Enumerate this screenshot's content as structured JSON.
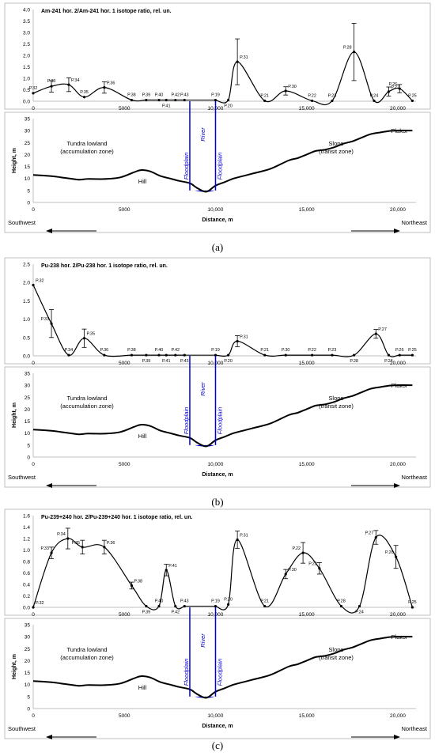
{
  "chart_data": [
    {
      "type": "line",
      "title": "Am-241 hor. 2/Am-241 hor. 1 isotope ratio, rel. un.",
      "ylim": [
        0,
        4
      ],
      "yticks": [
        "0.0",
        "0.5",
        "1.0",
        "1.5",
        "2.0",
        "2.5",
        "3.0",
        "3.5",
        "4.0"
      ],
      "xlim": [
        0,
        21000
      ],
      "xticks": [
        {
          "v": 0,
          "t": "0"
        },
        {
          "v": 5000,
          "t": "5000"
        },
        {
          "v": 10000,
          "t": "10,000"
        },
        {
          "v": 15000,
          "t": "15,000"
        },
        {
          "v": 20000,
          "t": "20,000"
        }
      ],
      "gap": [
        8590,
        10000
      ],
      "series": [
        {
          "values": [
            {
              "x": 0,
              "y": 0.35
            },
            {
              "x": 1000,
              "y": 0.65
            },
            {
              "x": 1950,
              "y": 0.72
            },
            {
              "x": 2800,
              "y": 0.18
            },
            {
              "x": 3900,
              "y": 0.6
            },
            {
              "x": 5400,
              "y": 0.05
            },
            {
              "x": 6200,
              "y": 0.05
            },
            {
              "x": 6900,
              "y": 0.05
            },
            {
              "x": 7300,
              "y": 0.05
            },
            {
              "x": 7800,
              "y": 0.05
            },
            {
              "x": 8300,
              "y": 0.05
            },
            {
              "x": 10000,
              "y": 0.05
            },
            {
              "x": 10700,
              "y": 0.05
            },
            {
              "x": 11200,
              "y": 1.72
            },
            {
              "x": 12700,
              "y": 0.02
            },
            {
              "x": 13850,
              "y": 0.45
            },
            {
              "x": 15300,
              "y": 0.02
            },
            {
              "x": 16400,
              "y": 0.02
            },
            {
              "x": 17600,
              "y": 2.15
            },
            {
              "x": 18700,
              "y": 0.02
            },
            {
              "x": 19500,
              "y": 0.42
            },
            {
              "x": 20100,
              "y": 0.55
            },
            {
              "x": 20800,
              "y": 0.02
            }
          ],
          "errors": [
            0,
            0.25,
            0.3,
            0,
            0.25,
            0,
            0,
            0,
            0,
            0,
            0,
            0,
            0,
            1.0,
            0,
            0.18,
            0,
            0,
            1.25,
            0,
            0.2,
            0.18,
            0
          ]
        }
      ],
      "labels": [
        {
          "x": 0,
          "t": "P.32",
          "pos": "above"
        },
        {
          "x": 1000,
          "t": "P.33",
          "pos": "above"
        },
        {
          "x": 1950,
          "t": "P.34",
          "pos": "right"
        },
        {
          "x": 2800,
          "t": "P.35",
          "pos": "above"
        },
        {
          "x": 3900,
          "t": "P.36",
          "pos": "right"
        },
        {
          "x": 5400,
          "t": "P.38",
          "pos": "above"
        },
        {
          "x": 6200,
          "t": "P.39",
          "pos": "above"
        },
        {
          "x": 6900,
          "t": "P.40",
          "pos": "above"
        },
        {
          "x": 7300,
          "t": "P.41",
          "pos": "below"
        },
        {
          "x": 7800,
          "t": "P.42",
          "pos": "above"
        },
        {
          "x": 8300,
          "t": "P.43",
          "pos": "above"
        },
        {
          "x": 10000,
          "t": "P.19",
          "pos": "above"
        },
        {
          "x": 10700,
          "t": "P.20",
          "pos": "below"
        },
        {
          "x": 11200,
          "t": "P.31",
          "pos": "right"
        },
        {
          "x": 12700,
          "t": "P.21",
          "pos": "above"
        },
        {
          "x": 13850,
          "t": "P.30",
          "pos": "right"
        },
        {
          "x": 15300,
          "t": "P.22",
          "pos": "above"
        },
        {
          "x": 16400,
          "t": "P.23",
          "pos": "above"
        },
        {
          "x": 17600,
          "t": "P.28",
          "pos": "left"
        },
        {
          "x": 18700,
          "t": "P.24",
          "pos": "above"
        },
        {
          "x": 19500,
          "t": "P.27",
          "pos": "right"
        },
        {
          "x": 20100,
          "t": "P.26",
          "pos": "left"
        },
        {
          "x": 20800,
          "t": "P.25",
          "pos": "above"
        }
      ]
    },
    {
      "type": "line",
      "title": "Pu-238 hor. 2/Pu-238 hor. 1 isotope ratio, rel. un.",
      "ylim": [
        0,
        2.5
      ],
      "yticks": [
        "0.0",
        "0.5",
        "1.0",
        "1.5",
        "2.0",
        "2.5"
      ],
      "xlim": [
        0,
        21000
      ],
      "xticks": [
        {
          "v": 0,
          "t": "0"
        },
        {
          "v": 5000,
          "t": "5000"
        },
        {
          "v": 10000,
          "t": "10,000"
        },
        {
          "v": 15000,
          "t": "15,000"
        },
        {
          "v": 20000,
          "t": "20,000"
        }
      ],
      "gap": [
        8590,
        10000
      ],
      "series": [
        {
          "values": [
            {
              "x": 0,
              "y": 1.93
            },
            {
              "x": 1000,
              "y": 0.88
            },
            {
              "x": 1950,
              "y": 0.02
            },
            {
              "x": 2800,
              "y": 0.48
            },
            {
              "x": 3900,
              "y": 0.02
            },
            {
              "x": 5400,
              "y": 0.02
            },
            {
              "x": 6200,
              "y": 0.02
            },
            {
              "x": 6900,
              "y": 0.02
            },
            {
              "x": 7300,
              "y": 0.02
            },
            {
              "x": 7800,
              "y": 0.02
            },
            {
              "x": 8300,
              "y": 0.02
            },
            {
              "x": 10000,
              "y": 0.02
            },
            {
              "x": 10700,
              "y": 0.02
            },
            {
              "x": 11200,
              "y": 0.4
            },
            {
              "x": 12700,
              "y": 0.02
            },
            {
              "x": 13850,
              "y": 0.02
            },
            {
              "x": 15300,
              "y": 0.02
            },
            {
              "x": 16400,
              "y": 0.02
            },
            {
              "x": 17600,
              "y": 0.02
            },
            {
              "x": 18800,
              "y": 0.6
            },
            {
              "x": 19500,
              "y": 0.02
            },
            {
              "x": 20100,
              "y": 0.02
            },
            {
              "x": 20800,
              "y": 0.02
            }
          ],
          "errors": [
            0,
            0.38,
            0,
            0.25,
            0,
            0,
            0,
            0,
            0,
            0,
            0,
            0,
            0,
            0.15,
            0,
            0,
            0,
            0,
            0,
            0.12,
            0,
            0,
            0
          ]
        }
      ],
      "labels": [
        {
          "x": 0,
          "t": "P.32",
          "pos": "right"
        },
        {
          "x": 1000,
          "t": "P.33",
          "pos": "left"
        },
        {
          "x": 1950,
          "t": "P.34",
          "pos": "above"
        },
        {
          "x": 2800,
          "t": "P.35",
          "pos": "right"
        },
        {
          "x": 3900,
          "t": "P.36",
          "pos": "above"
        },
        {
          "x": 5400,
          "t": "P.38",
          "pos": "above"
        },
        {
          "x": 6200,
          "t": "P.39",
          "pos": "below"
        },
        {
          "x": 6900,
          "t": "P.40",
          "pos": "above"
        },
        {
          "x": 7300,
          "t": "P.41",
          "pos": "below"
        },
        {
          "x": 7800,
          "t": "P.42",
          "pos": "above"
        },
        {
          "x": 8300,
          "t": "P.43",
          "pos": "below"
        },
        {
          "x": 10000,
          "t": "P.19",
          "pos": "above"
        },
        {
          "x": 10700,
          "t": "P.20",
          "pos": "below"
        },
        {
          "x": 11200,
          "t": "P.31",
          "pos": "right"
        },
        {
          "x": 12700,
          "t": "P.21",
          "pos": "above"
        },
        {
          "x": 13850,
          "t": "P.30",
          "pos": "above"
        },
        {
          "x": 15300,
          "t": "P.22",
          "pos": "above"
        },
        {
          "x": 16400,
          "t": "P.23",
          "pos": "above"
        },
        {
          "x": 17600,
          "t": "P.28",
          "pos": "below"
        },
        {
          "x": 18800,
          "t": "P.27",
          "pos": "right"
        },
        {
          "x": 19500,
          "t": "P.24",
          "pos": "below"
        },
        {
          "x": 20100,
          "t": "P.26",
          "pos": "above"
        },
        {
          "x": 20800,
          "t": "P.25",
          "pos": "above"
        }
      ]
    },
    {
      "type": "line",
      "title": "Pu-239+240 hor. 2/Pu-239+240 hor. 1 isotope ratio, rel. un.",
      "ylim": [
        0,
        1.6
      ],
      "yticks": [
        "0.0",
        "0.2",
        "0.4",
        "0.6",
        "0.8",
        "1.0",
        "1.2",
        "1.4",
        "1.6"
      ],
      "xlim": [
        0,
        21000
      ],
      "xticks": [
        {
          "v": 0,
          "t": "0"
        },
        {
          "v": 5000,
          "t": "5000"
        },
        {
          "v": 10000,
          "t": "10,000"
        },
        {
          "v": 15000,
          "t": "15,000"
        },
        {
          "v": 20000,
          "t": "20,000"
        }
      ],
      "gap": [
        8590,
        10000
      ],
      "series": [
        {
          "values": [
            {
              "x": 0,
              "y": 0.0
            },
            {
              "x": 1000,
              "y": 0.95
            },
            {
              "x": 1900,
              "y": 1.2
            },
            {
              "x": 2700,
              "y": 1.05
            },
            {
              "x": 3900,
              "y": 1.05
            },
            {
              "x": 5400,
              "y": 0.38
            },
            {
              "x": 6200,
              "y": 0.02
            },
            {
              "x": 6900,
              "y": 0.02
            },
            {
              "x": 7300,
              "y": 0.65
            },
            {
              "x": 7800,
              "y": 0.02
            },
            {
              "x": 8300,
              "y": 0.02
            },
            {
              "x": 10000,
              "y": 0.02
            },
            {
              "x": 10700,
              "y": 0.05
            },
            {
              "x": 11200,
              "y": 1.18
            },
            {
              "x": 12700,
              "y": 0.02
            },
            {
              "x": 13850,
              "y": 0.58
            },
            {
              "x": 14800,
              "y": 0.95
            },
            {
              "x": 15700,
              "y": 0.68
            },
            {
              "x": 16900,
              "y": 0.02
            },
            {
              "x": 17900,
              "y": 0.02
            },
            {
              "x": 18800,
              "y": 1.22
            },
            {
              "x": 19900,
              "y": 0.88
            },
            {
              "x": 20800,
              "y": 0.0
            }
          ],
          "errors": [
            0,
            0.1,
            0.18,
            0.12,
            0.12,
            0.06,
            0,
            0,
            0.1,
            0,
            0,
            0,
            0,
            0.15,
            0,
            0.08,
            0.18,
            0.1,
            0,
            0,
            0.12,
            0.2,
            0
          ]
        }
      ],
      "labels": [
        {
          "x": 0,
          "t": "P.32",
          "pos": "right"
        },
        {
          "x": 1000,
          "t": "P.33",
          "pos": "left"
        },
        {
          "x": 1900,
          "t": "P.34",
          "pos": "left"
        },
        {
          "x": 2700,
          "t": "P.35",
          "pos": "left"
        },
        {
          "x": 3900,
          "t": "P.36",
          "pos": "right"
        },
        {
          "x": 5400,
          "t": "P.38",
          "pos": "right"
        },
        {
          "x": 6200,
          "t": "P.39",
          "pos": "below"
        },
        {
          "x": 6900,
          "t": "P.40",
          "pos": "above"
        },
        {
          "x": 7300,
          "t": "P.41",
          "pos": "right"
        },
        {
          "x": 7800,
          "t": "P.42",
          "pos": "below"
        },
        {
          "x": 8300,
          "t": "P.43",
          "pos": "above"
        },
        {
          "x": 10000,
          "t": "P.19",
          "pos": "above"
        },
        {
          "x": 10700,
          "t": "P.20",
          "pos": "above"
        },
        {
          "x": 11200,
          "t": "P.31",
          "pos": "right"
        },
        {
          "x": 12700,
          "t": "P.21",
          "pos": "above"
        },
        {
          "x": 13850,
          "t": "P.30",
          "pos": "right"
        },
        {
          "x": 14800,
          "t": "P.22",
          "pos": "left"
        },
        {
          "x": 15700,
          "t": "P.23",
          "pos": "left"
        },
        {
          "x": 16900,
          "t": "P.28",
          "pos": "above"
        },
        {
          "x": 17900,
          "t": "P.24",
          "pos": "below"
        },
        {
          "x": 18800,
          "t": "P.27",
          "pos": "left"
        },
        {
          "x": 19900,
          "t": "P.26",
          "pos": "left"
        },
        {
          "x": 20800,
          "t": "P.25",
          "pos": "above"
        }
      ]
    }
  ],
  "profile": {
    "ylabel": "Height, m",
    "xlabel": "Distance, m",
    "ylim": [
      0,
      35
    ],
    "yticks": [
      "0",
      "5",
      "10",
      "15",
      "20",
      "25",
      "30",
      "35"
    ],
    "xticks": [
      {
        "v": 0,
        "t": "0"
      },
      {
        "v": 5000,
        "t": "5000"
      },
      {
        "v": 10000,
        "t": "10,000"
      },
      {
        "v": 15000,
        "t": "15,000"
      },
      {
        "v": 20000,
        "t": "20,000"
      }
    ],
    "terrain": [
      {
        "x": 0,
        "y": 11.5
      },
      {
        "x": 1000,
        "y": 11
      },
      {
        "x": 1500,
        "y": 10.5
      },
      {
        "x": 2000,
        "y": 10
      },
      {
        "x": 2500,
        "y": 9.5
      },
      {
        "x": 3000,
        "y": 9.8
      },
      {
        "x": 4000,
        "y": 9.8
      },
      {
        "x": 4800,
        "y": 10.5
      },
      {
        "x": 5500,
        "y": 12.5
      },
      {
        "x": 5900,
        "y": 13.5
      },
      {
        "x": 6400,
        "y": 13
      },
      {
        "x": 7000,
        "y": 11
      },
      {
        "x": 7500,
        "y": 10
      },
      {
        "x": 8000,
        "y": 9
      },
      {
        "x": 8600,
        "y": 8
      },
      {
        "x": 9000,
        "y": 6
      },
      {
        "x": 9500,
        "y": 4.5
      },
      {
        "x": 10000,
        "y": 7
      },
      {
        "x": 10500,
        "y": 8.5
      },
      {
        "x": 11000,
        "y": 10
      },
      {
        "x": 11500,
        "y": 11
      },
      {
        "x": 12000,
        "y": 12
      },
      {
        "x": 13000,
        "y": 14
      },
      {
        "x": 14000,
        "y": 17.5
      },
      {
        "x": 14500,
        "y": 18.5
      },
      {
        "x": 15000,
        "y": 20
      },
      {
        "x": 15500,
        "y": 21.5
      },
      {
        "x": 16000,
        "y": 22
      },
      {
        "x": 16500,
        "y": 23
      },
      {
        "x": 17000,
        "y": 24.5
      },
      {
        "x": 17500,
        "y": 25.5
      },
      {
        "x": 18000,
        "y": 27
      },
      {
        "x": 18500,
        "y": 28.5
      },
      {
        "x": 19000,
        "y": 29.2
      },
      {
        "x": 19500,
        "y": 29.8
      },
      {
        "x": 20000,
        "y": 30
      },
      {
        "x": 20800,
        "y": 30
      }
    ],
    "river_x": [
      8590,
      10000
    ],
    "annotations": {
      "tundra1": "Tundra lowland",
      "tundra2": "(accumulation zone)",
      "hill": "Hill",
      "floodplain": "Floodplain",
      "river": "River",
      "slope1": "Slope",
      "slope2": "(transit zone)",
      "plakor_a": "Plakor",
      "plakor_bc": "Plaкor"
    },
    "southwest": "Southwest",
    "northeast": "Northeast"
  },
  "captions": [
    "(a)",
    "(b)",
    "(c)"
  ],
  "colors": {
    "line": "#000000",
    "river": "#0000cc",
    "axis": "#bfbfbf",
    "text": "#000000"
  }
}
